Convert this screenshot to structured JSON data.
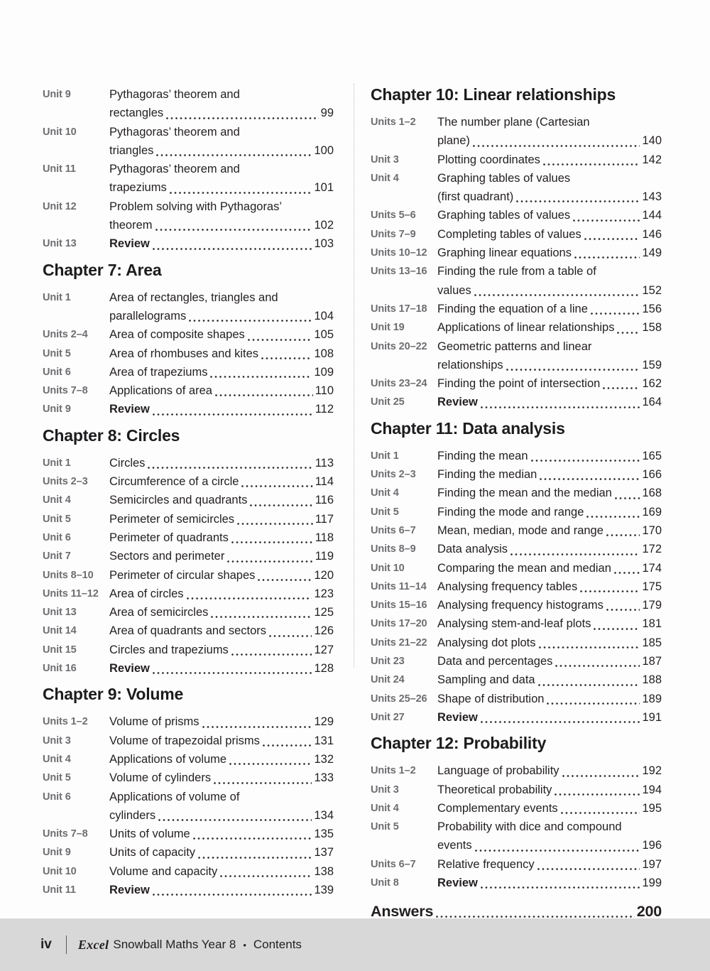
{
  "colors": {
    "text": "#231f20",
    "unit_label_gray": "#6d6e71",
    "footer_background": "#d8d8d8"
  },
  "columns": {
    "left": {
      "sections": [
        {
          "heading": null,
          "rows": [
            {
              "label": "Unit 9",
              "title_lines": [
                "Pythagoras’ theorem and",
                "rectangles"
              ],
              "page": "99"
            },
            {
              "label": "Unit 10",
              "title_lines": [
                "Pythagoras’ theorem and",
                "triangles"
              ],
              "page": "100"
            },
            {
              "label": "Unit 11",
              "title_lines": [
                "Pythagoras’ theorem and",
                "trapeziums"
              ],
              "page": "101"
            },
            {
              "label": "Unit 12",
              "title_lines": [
                "Problem solving with Pythagoras’",
                "theorem"
              ],
              "page": "102"
            },
            {
              "label": "Unit 13",
              "title_lines": [
                "Review"
              ],
              "page": "103",
              "bold": true
            }
          ]
        },
        {
          "heading": "Chapter 7: Area",
          "rows": [
            {
              "label": "Unit 1",
              "title_lines": [
                "Area of rectangles, triangles and",
                "parallelograms"
              ],
              "page": "104"
            },
            {
              "label": "Units 2–4",
              "title_lines": [
                "Area of composite shapes"
              ],
              "page": "105"
            },
            {
              "label": "Unit 5",
              "title_lines": [
                "Area of rhombuses and kites"
              ],
              "page": "108"
            },
            {
              "label": "Unit 6",
              "title_lines": [
                "Area of trapeziums"
              ],
              "page": "109"
            },
            {
              "label": "Units 7–8",
              "title_lines": [
                "Applications of area"
              ],
              "page": "110"
            },
            {
              "label": "Unit 9",
              "title_lines": [
                "Review"
              ],
              "page": "112",
              "bold": true
            }
          ]
        },
        {
          "heading": "Chapter 8: Circles",
          "rows": [
            {
              "label": "Unit 1",
              "title_lines": [
                "Circles"
              ],
              "page": "113"
            },
            {
              "label": "Units 2–3",
              "title_lines": [
                "Circumference of a circle"
              ],
              "page": "114"
            },
            {
              "label": "Unit 4",
              "title_lines": [
                "Semicircles and quadrants"
              ],
              "page": "116"
            },
            {
              "label": "Unit 5",
              "title_lines": [
                "Perimeter of semicircles"
              ],
              "page": "117"
            },
            {
              "label": "Unit 6",
              "title_lines": [
                "Perimeter of quadrants"
              ],
              "page": "118"
            },
            {
              "label": "Unit 7",
              "title_lines": [
                "Sectors and perimeter"
              ],
              "page": "119"
            },
            {
              "label": "Units 8–10",
              "title_lines": [
                "Perimeter of circular shapes"
              ],
              "page": "120"
            },
            {
              "label": "Units 11–12",
              "title_lines": [
                "Area of circles"
              ],
              "page": "123"
            },
            {
              "label": "Unit 13",
              "title_lines": [
                "Area of semicircles"
              ],
              "page": "125"
            },
            {
              "label": "Unit 14",
              "title_lines": [
                "Area of quadrants and sectors"
              ],
              "page": "126"
            },
            {
              "label": "Unit 15",
              "title_lines": [
                "Circles and trapeziums"
              ],
              "page": "127"
            },
            {
              "label": "Unit 16",
              "title_lines": [
                "Review"
              ],
              "page": "128",
              "bold": true
            }
          ]
        },
        {
          "heading": "Chapter 9: Volume",
          "rows": [
            {
              "label": "Units 1–2",
              "title_lines": [
                "Volume of prisms"
              ],
              "page": "129"
            },
            {
              "label": "Unit 3",
              "title_lines": [
                "Volume of trapezoidal prisms"
              ],
              "page": "131"
            },
            {
              "label": "Unit 4",
              "title_lines": [
                "Applications of volume"
              ],
              "page": "132"
            },
            {
              "label": "Unit 5",
              "title_lines": [
                "Volume of cylinders"
              ],
              "page": "133"
            },
            {
              "label": "Unit 6",
              "title_lines": [
                "Applications of volume of",
                "cylinders"
              ],
              "page": "134"
            },
            {
              "label": "Units 7–8",
              "title_lines": [
                "Units of volume"
              ],
              "page": "135"
            },
            {
              "label": "Unit 9",
              "title_lines": [
                "Units of capacity"
              ],
              "page": "137"
            },
            {
              "label": "Unit 10",
              "title_lines": [
                "Volume and capacity"
              ],
              "page": "138"
            },
            {
              "label": "Unit 11",
              "title_lines": [
                "Review"
              ],
              "page": "139",
              "bold": true
            }
          ]
        }
      ]
    },
    "right": {
      "sections": [
        {
          "heading": "Chapter 10: Linear relationships",
          "rows": [
            {
              "label": "Units 1–2",
              "title_lines": [
                "The number plane (Cartesian",
                "plane)"
              ],
              "page": "140"
            },
            {
              "label": "Unit 3",
              "title_lines": [
                "Plotting coordinates"
              ],
              "page": "142"
            },
            {
              "label": "Unit 4",
              "title_lines": [
                "Graphing tables of values",
                "(first quadrant)"
              ],
              "page": "143"
            },
            {
              "label": "Units 5–6",
              "title_lines": [
                "Graphing tables of values"
              ],
              "page": "144"
            },
            {
              "label": "Units 7–9",
              "title_lines": [
                "Completing tables of values"
              ],
              "page": "146"
            },
            {
              "label": "Units 10–12",
              "title_lines": [
                "Graphing linear equations"
              ],
              "page": "149"
            },
            {
              "label": "Units 13–16",
              "title_lines": [
                "Finding the rule from a table of",
                "values"
              ],
              "page": "152"
            },
            {
              "label": "Units 17–18",
              "title_lines": [
                "Finding the equation of a line"
              ],
              "page": "156"
            },
            {
              "label": "Unit 19",
              "title_lines": [
                "Applications of linear relationships"
              ],
              "page": "158"
            },
            {
              "label": "Units 20–22",
              "title_lines": [
                "Geometric patterns and linear",
                "relationships"
              ],
              "page": "159"
            },
            {
              "label": "Units 23–24",
              "title_lines": [
                "Finding the point of intersection"
              ],
              "page": "162"
            },
            {
              "label": "Unit 25",
              "title_lines": [
                "Review"
              ],
              "page": "164",
              "bold": true
            }
          ]
        },
        {
          "heading": "Chapter 11: Data analysis",
          "rows": [
            {
              "label": "Unit 1",
              "title_lines": [
                "Finding the mean"
              ],
              "page": "165"
            },
            {
              "label": "Units 2–3",
              "title_lines": [
                "Finding the median"
              ],
              "page": "166"
            },
            {
              "label": "Unit 4",
              "title_lines": [
                "Finding the mean and the median"
              ],
              "page": "168"
            },
            {
              "label": "Unit 5",
              "title_lines": [
                "Finding the mode and range"
              ],
              "page": "169"
            },
            {
              "label": "Units 6–7",
              "title_lines": [
                "Mean, median, mode and range"
              ],
              "page": "170"
            },
            {
              "label": "Units 8–9",
              "title_lines": [
                "Data analysis"
              ],
              "page": "172"
            },
            {
              "label": "Unit 10",
              "title_lines": [
                "Comparing the mean and median"
              ],
              "page": "174"
            },
            {
              "label": "Units 11–14",
              "title_lines": [
                "Analysing frequency tables"
              ],
              "page": "175"
            },
            {
              "label": "Units 15–16",
              "title_lines": [
                "Analysing frequency histograms"
              ],
              "page": "179"
            },
            {
              "label": "Units 17–20",
              "title_lines": [
                "Analysing stem-and-leaf plots"
              ],
              "page": "181"
            },
            {
              "label": "Units 21–22",
              "title_lines": [
                "Analysing dot plots"
              ],
              "page": "185"
            },
            {
              "label": "Unit 23",
              "title_lines": [
                "Data and percentages"
              ],
              "page": "187"
            },
            {
              "label": "Unit 24",
              "title_lines": [
                "Sampling and data"
              ],
              "page": "188"
            },
            {
              "label": "Units 25–26",
              "title_lines": [
                "Shape of distribution"
              ],
              "page": "189"
            },
            {
              "label": "Unit 27",
              "title_lines": [
                "Review"
              ],
              "page": "191",
              "bold": true
            }
          ]
        },
        {
          "heading": "Chapter 12: Probability",
          "rows": [
            {
              "label": "Units 1–2",
              "title_lines": [
                "Language of probability"
              ],
              "page": "192"
            },
            {
              "label": "Unit 3",
              "title_lines": [
                "Theoretical probability"
              ],
              "page": "194"
            },
            {
              "label": "Unit 4",
              "title_lines": [
                "Complementary events"
              ],
              "page": "195"
            },
            {
              "label": "Unit 5",
              "title_lines": [
                "Probability with dice and compound",
                "events"
              ],
              "page": "196"
            },
            {
              "label": "Units 6–7",
              "title_lines": [
                "Relative frequency"
              ],
              "page": "197"
            },
            {
              "label": "Unit 8",
              "title_lines": [
                "Review"
              ],
              "page": "199",
              "bold": true
            }
          ]
        }
      ],
      "answers": {
        "label": "Answers",
        "page": "200"
      }
    }
  },
  "footer": {
    "folio": "iv",
    "brand": "Excel",
    "book_title_rest": "Snowball Maths Year 8",
    "bullet": "•",
    "section": "Contents"
  }
}
